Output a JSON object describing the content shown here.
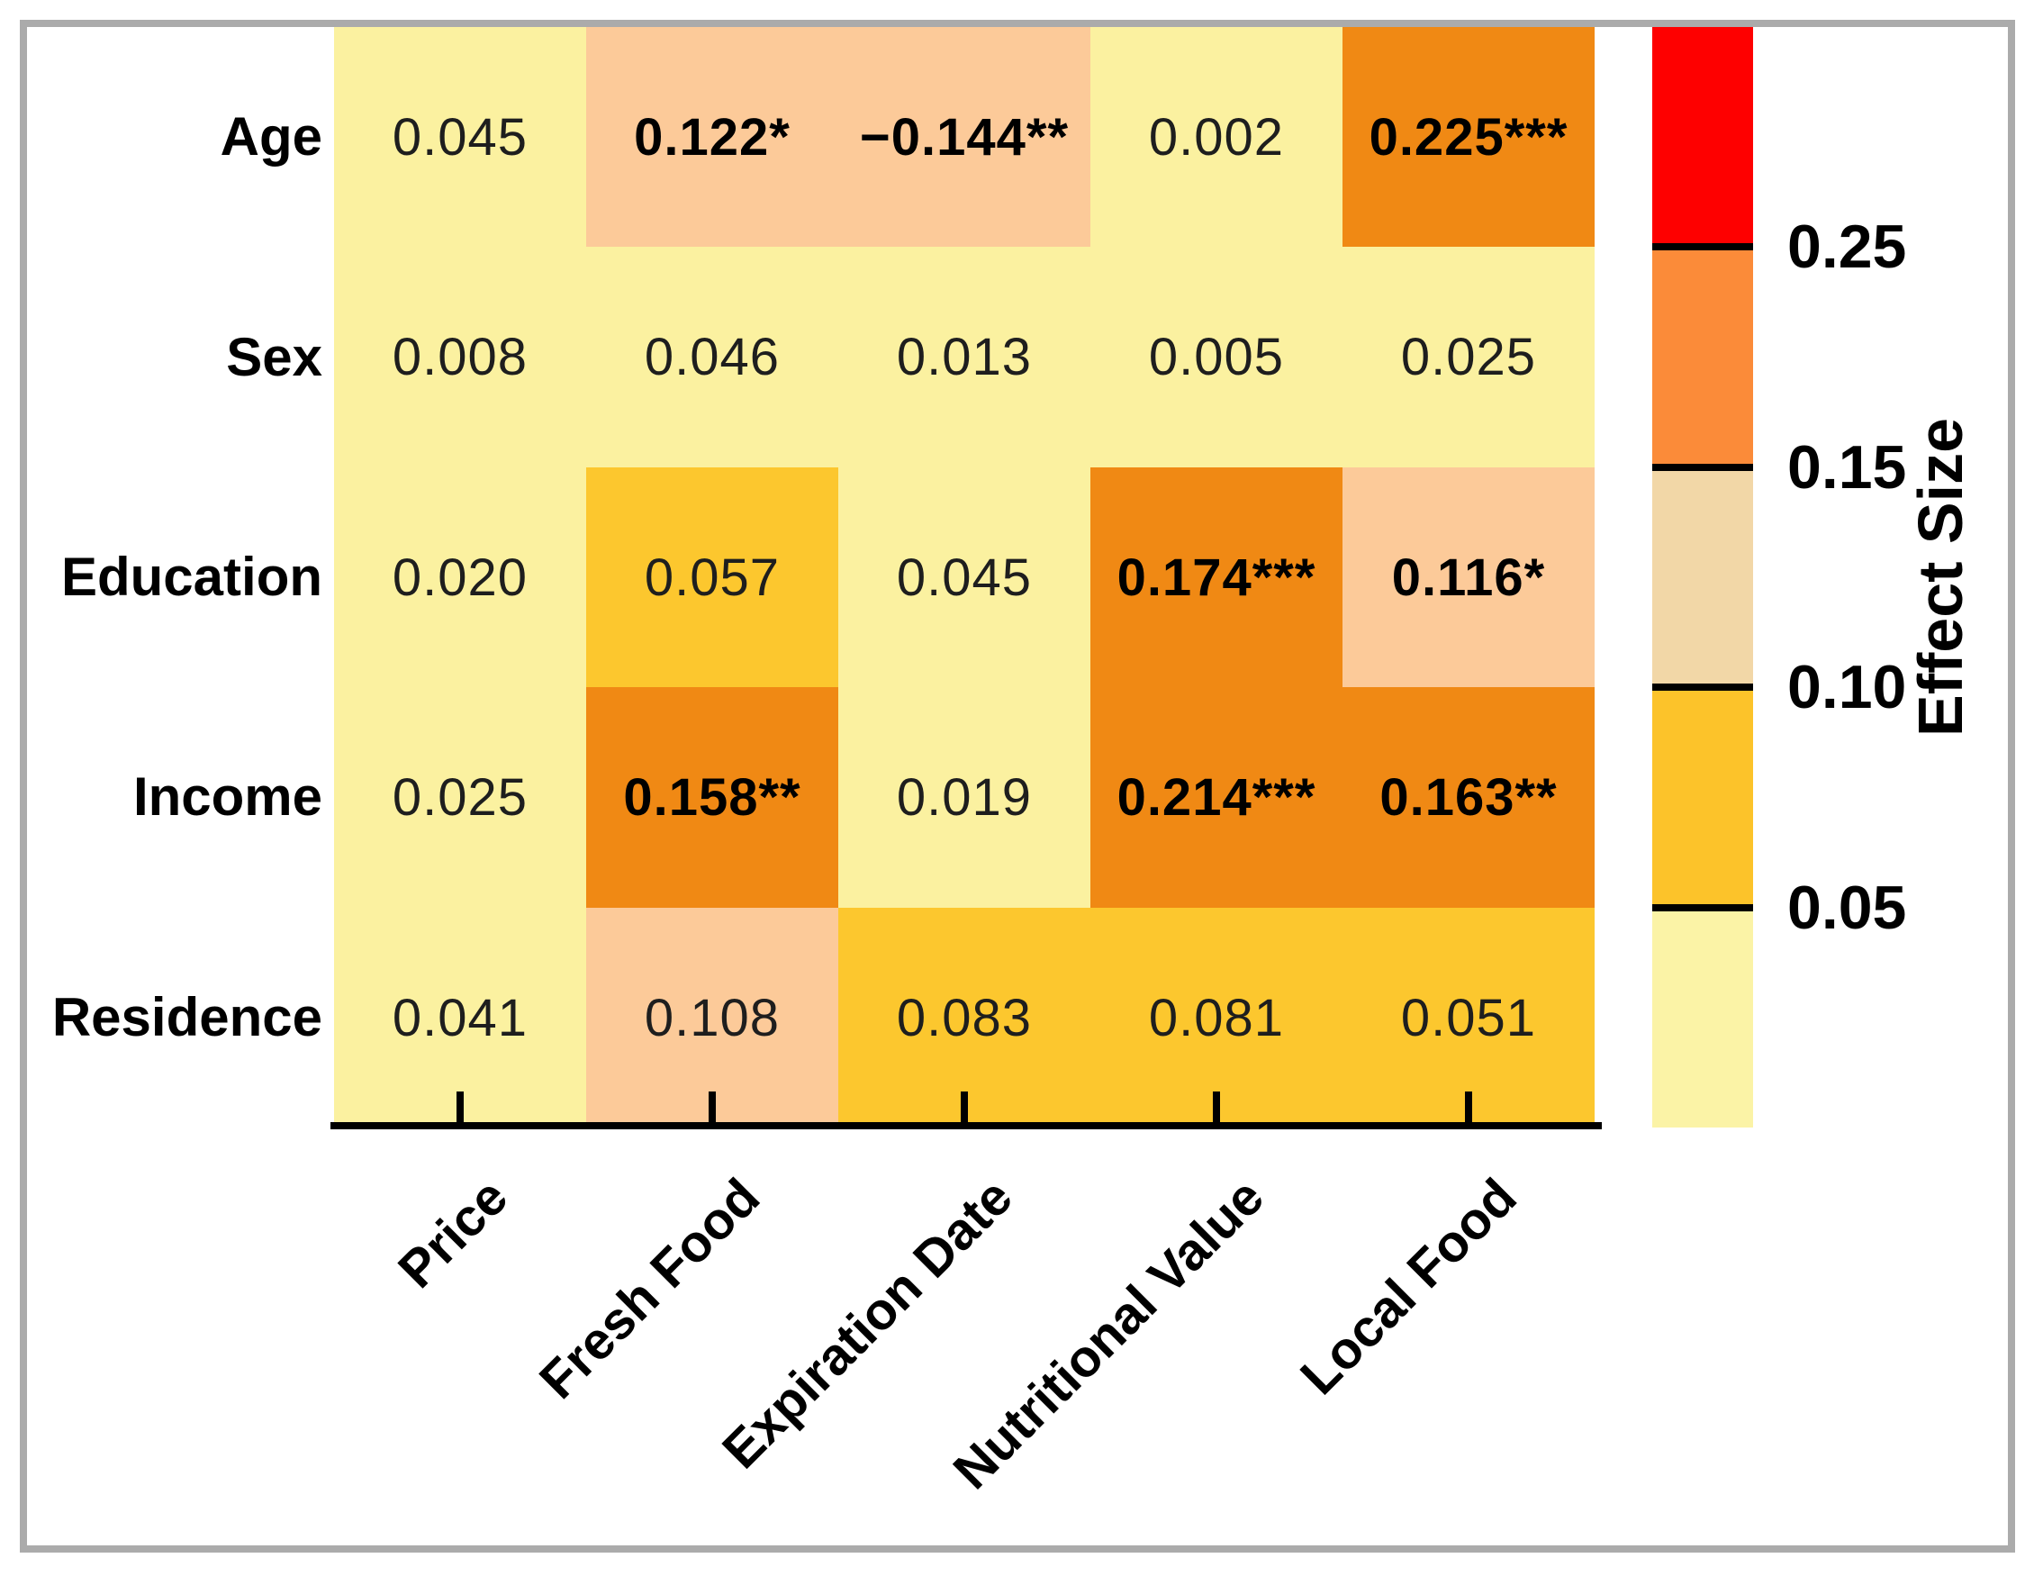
{
  "chart_data": {
    "type": "heatmap",
    "rows": [
      "Age",
      "Sex",
      "Education",
      "Income",
      "Residence"
    ],
    "columns": [
      "Price",
      "Fresh Food",
      "Expiration Date",
      "Nutritional Value",
      "Local Food"
    ],
    "cells": [
      [
        {
          "label": "0.045",
          "value": 0.045,
          "significant": false
        },
        {
          "label": "0.122*",
          "value": 0.122,
          "significant": true
        },
        {
          "label": "−0.144**",
          "value": -0.144,
          "significant": true
        },
        {
          "label": "0.002",
          "value": 0.002,
          "significant": false
        },
        {
          "label": "0.225***",
          "value": 0.225,
          "significant": true
        }
      ],
      [
        {
          "label": "0.008",
          "value": 0.008,
          "significant": false
        },
        {
          "label": "0.046",
          "value": 0.046,
          "significant": false
        },
        {
          "label": "0.013",
          "value": 0.013,
          "significant": false
        },
        {
          "label": "0.005",
          "value": 0.005,
          "significant": false
        },
        {
          "label": "0.025",
          "value": 0.025,
          "significant": false
        }
      ],
      [
        {
          "label": "0.020",
          "value": 0.02,
          "significant": false
        },
        {
          "label": "0.057",
          "value": 0.057,
          "significant": false
        },
        {
          "label": "0.045",
          "value": 0.045,
          "significant": false
        },
        {
          "label": "0.174***",
          "value": 0.174,
          "significant": true
        },
        {
          "label": "0.116*",
          "value": 0.116,
          "significant": true
        }
      ],
      [
        {
          "label": "0.025",
          "value": 0.025,
          "significant": false
        },
        {
          "label": "0.158**",
          "value": 0.158,
          "significant": true
        },
        {
          "label": "0.019",
          "value": 0.019,
          "significant": false
        },
        {
          "label": "0.214***",
          "value": 0.214,
          "significant": true
        },
        {
          "label": "0.163**",
          "value": 0.163,
          "significant": true
        }
      ],
      [
        {
          "label": "0.041",
          "value": 0.041,
          "significant": false
        },
        {
          "label": "0.108",
          "value": 0.108,
          "significant": false
        },
        {
          "label": "0.083",
          "value": 0.083,
          "significant": false
        },
        {
          "label": "0.081",
          "value": 0.081,
          "significant": false
        },
        {
          "label": "0.051",
          "value": 0.051,
          "significant": false
        }
      ]
    ],
    "cell_bin_thresholds": [
      0.05,
      0.1,
      0.15
    ],
    "cell_bin_colors": [
      "#FBF1A0",
      "#FCC72E",
      "#FCCA99",
      "#F08914"
    ],
    "colorbar": {
      "label": "Effect Size",
      "tick_labels": [
        "0.25",
        "0.15",
        "0.10",
        "0.05"
      ],
      "segment_colors_top_to_bottom": [
        "#FE0000",
        "#FB8B39",
        "#F2D7A7",
        "#FCC32A",
        "#FBF3A6"
      ]
    },
    "grid": false,
    "legend_position": "right"
  }
}
